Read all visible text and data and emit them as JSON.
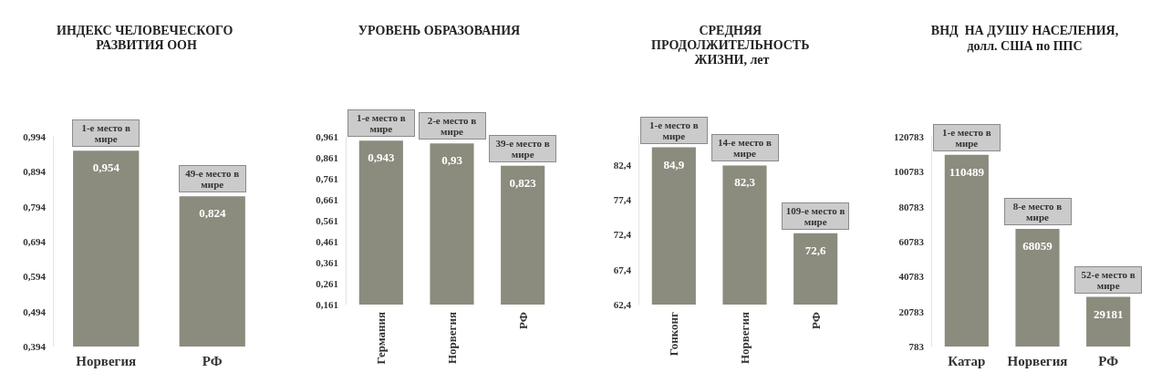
{
  "chart_data": [
    {
      "type": "bar",
      "title": "ИНДЕКС ЧЕЛОВЕЧЕСКОГО РАЗВИТИЯ ООН",
      "categories": [
        "Норвегия",
        "РФ"
      ],
      "values": [
        0.954,
        0.824
      ],
      "color": "#8b8b7e",
      "value_labels": [
        "0,954",
        "0,824"
      ],
      "ylim": [
        0.394,
        0.994
      ],
      "yticks": [
        {
          "value": 0.394,
          "label": "0,394"
        },
        {
          "value": 0.494,
          "label": "0,494"
        },
        {
          "value": 0.594,
          "label": "0,594"
        },
        {
          "value": 0.694,
          "label": "0,694"
        },
        {
          "value": 0.794,
          "label": "0,794"
        },
        {
          "value": 0.894,
          "label": "0,894"
        },
        {
          "value": 0.994,
          "label": "0,994"
        }
      ],
      "annotations": [
        {
          "text": "1-е место в мире",
          "x": "Норвегия",
          "y": 0.954
        },
        {
          "text": "49-е место в мире",
          "x": "РФ",
          "y": 0.824
        }
      ],
      "grid": false
    },
    {
      "type": "bar",
      "title": "УРОВЕНЬ ОБРАЗОВАНИЯ",
      "categories": [
        "Германия",
        "Норвегия",
        "РФ"
      ],
      "values": [
        0.943,
        0.93,
        0.823
      ],
      "color": "#8b8b7e",
      "value_labels": [
        "0,943",
        "0,93",
        "0,823"
      ],
      "ylim": [
        0.161,
        0.961
      ],
      "yticks": [
        {
          "value": 0.161,
          "label": "0,161"
        },
        {
          "value": 0.261,
          "label": "0,261"
        },
        {
          "value": 0.361,
          "label": "0,361"
        },
        {
          "value": 0.461,
          "label": "0,461"
        },
        {
          "value": 0.561,
          "label": "0,561"
        },
        {
          "value": 0.661,
          "label": "0,661"
        },
        {
          "value": 0.761,
          "label": "0,761"
        },
        {
          "value": 0.861,
          "label": "0,861"
        },
        {
          "value": 0.961,
          "label": "0,961"
        }
      ],
      "annotations": [
        {
          "text": "1-е место в мире",
          "x": "Германия",
          "y": 0.943
        },
        {
          "text": "2-е место в мире",
          "x": "Норвегия",
          "y": 0.93
        },
        {
          "text": "39-е место в мире",
          "x": "РФ",
          "y": 0.823
        }
      ],
      "grid": false
    },
    {
      "type": "bar",
      "title": "СРЕДНЯЯ ПРОДОЛЖИТЕЛЬНОСТЬ ЖИЗНИ, лет",
      "categories": [
        "Гонконг",
        "Норвегия",
        "РФ"
      ],
      "values": [
        84.9,
        82.3,
        72.6
      ],
      "color": "#8b8b7e",
      "value_labels": [
        "84,9",
        "82,3",
        "72,6"
      ],
      "ylim": [
        62.4,
        86.4
      ],
      "yticks": [
        {
          "value": 62.4,
          "label": "62,4"
        },
        {
          "value": 67.4,
          "label": "67,4"
        },
        {
          "value": 72.4,
          "label": "72,4"
        },
        {
          "value": 77.4,
          "label": "77,4"
        },
        {
          "value": 82.4,
          "label": "82,4"
        }
      ],
      "annotations": [
        {
          "text": "1-е место в мире",
          "x": "Гонконг",
          "y": 84.9
        },
        {
          "text": "14-е место в мире",
          "x": "Норвегия",
          "y": 82.3
        },
        {
          "text": "109-е место в мире",
          "x": "РФ",
          "y": 72.6
        }
      ],
      "grid": false
    },
    {
      "type": "bar",
      "title": "ВНД  НА ДУШУ НАСЕЛЕНИЯ,",
      "subtitle": "долл. США по ППС",
      "categories": [
        "Катар",
        "Норвегия",
        "РФ"
      ],
      "values": [
        110489,
        68059,
        29181
      ],
      "color": "#8b8b7e",
      "data_labels": true,
      "ylim": [
        783,
        120783
      ],
      "yticks": [
        783,
        20783,
        40783,
        60783,
        80783,
        100783,
        120783
      ],
      "annotations": [
        {
          "text": "1-е место в мире",
          "x": "Катар",
          "y": 110489
        },
        {
          "text": "8-е место в мире",
          "x": "Норвегия",
          "y": 68059
        },
        {
          "text": "52-е место в мире",
          "x": "РФ",
          "y": 29181
        }
      ],
      "grid": false
    }
  ]
}
